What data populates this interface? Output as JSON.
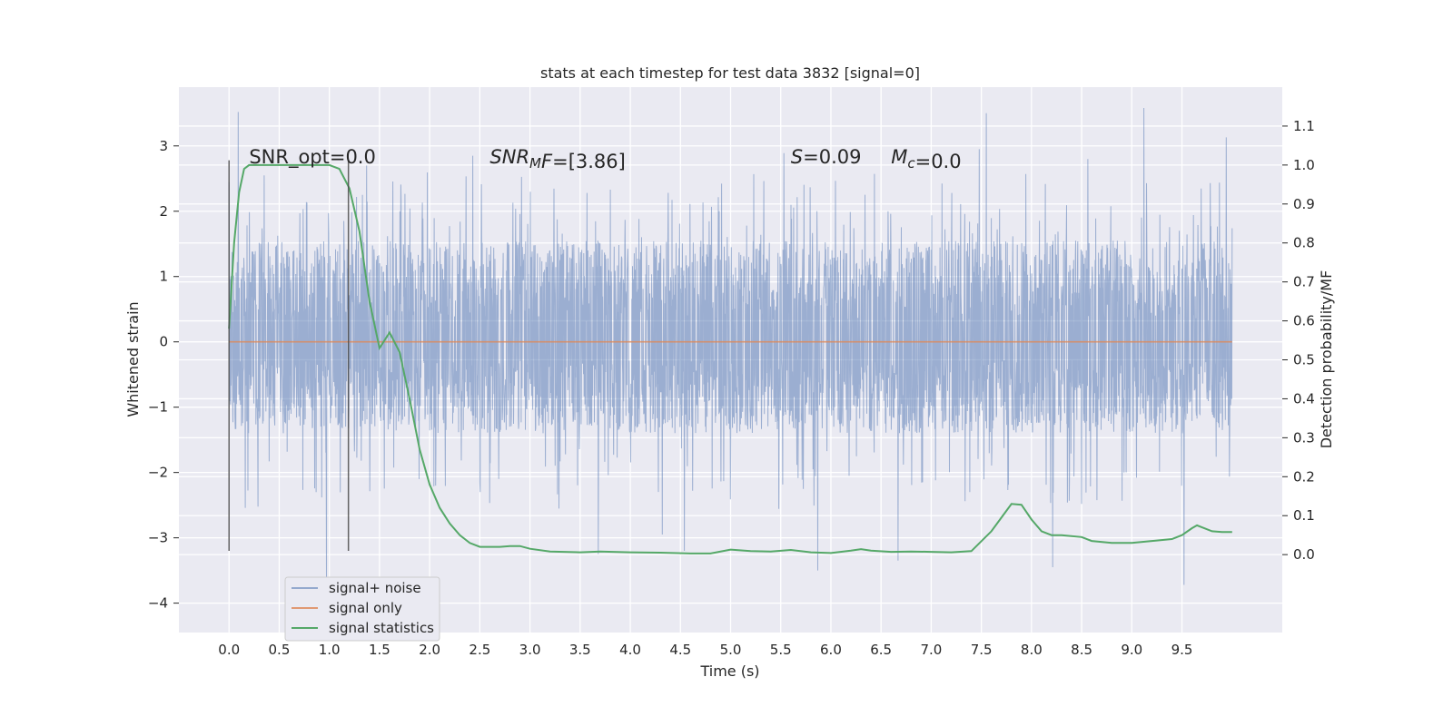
{
  "chart_data": {
    "type": "line",
    "title": "stats at each timestep for test data 3832 [signal=0]",
    "xlabel": "Time (s)",
    "ylabel": "Whitened strain",
    "ylabel_right": "Detection probability/MF",
    "xlim": [
      -0.5,
      10.5
    ],
    "ylim": [
      -4.45,
      3.9
    ],
    "ylim_right": [
      -0.2,
      1.2
    ],
    "x_ticks": [
      "0.0",
      "0.5",
      "1.0",
      "1.5",
      "2.0",
      "2.5",
      "3.0",
      "3.5",
      "4.0",
      "4.5",
      "5.0",
      "5.5",
      "6.0",
      "6.5",
      "7.0",
      "7.5",
      "8.0",
      "8.5",
      "9.0",
      "9.5"
    ],
    "y_ticks": [
      "3",
      "2",
      "1",
      "0",
      "−1",
      "−2",
      "−3",
      "−4"
    ],
    "y_right_ticks": [
      "1.1",
      "1.0",
      "0.9",
      "0.8",
      "0.7",
      "0.6",
      "0.5",
      "0.4",
      "0.3",
      "0.2",
      "0.1",
      "0.0"
    ],
    "grid": true,
    "legend_position": "lower-left",
    "annotations": [
      {
        "parts": [
          {
            "t": "SNR_opt=0.0",
            "i": false
          }
        ],
        "x": 0.2
      },
      {
        "parts": [
          {
            "t": "SNR",
            "i": true
          },
          {
            "t": "M",
            "i": true,
            "sub": true
          },
          {
            "t": "F",
            "i": true
          },
          {
            "t": "=[3.86]",
            "i": false
          }
        ],
        "x": 2.6
      },
      {
        "parts": [
          {
            "t": "S",
            "i": true
          },
          {
            "t": "=0.09",
            "i": false
          }
        ],
        "x": 5.6
      },
      {
        "parts": [
          {
            "t": "M",
            "i": true
          },
          {
            "t": "c",
            "i": true,
            "sub": true
          },
          {
            "t": "=0.0",
            "i": false
          }
        ],
        "x": 6.6
      }
    ],
    "vlines": [
      0.0,
      1.19
    ],
    "vline_ymin": -3.2,
    "vline_ymax": 2.78,
    "series": [
      {
        "name": "signal+ noise",
        "color": "#4c72b0",
        "x_range": [
          0.0,
          10.0
        ],
        "envelope_low": -1.4,
        "envelope_high": 1.55,
        "spike_extremes": [
          {
            "x": 0.09,
            "y": 3.52
          },
          {
            "x": 0.35,
            "y": 2.55
          },
          {
            "x": 0.97,
            "y": -3.62
          },
          {
            "x": 1.37,
            "y": 2.7
          },
          {
            "x": 2.06,
            "y": -2.2
          },
          {
            "x": 2.43,
            "y": 2.85
          },
          {
            "x": 3.68,
            "y": -3.25
          },
          {
            "x": 4.32,
            "y": -2.95
          },
          {
            "x": 4.54,
            "y": -3.2
          },
          {
            "x": 5.53,
            "y": 2.89
          },
          {
            "x": 5.87,
            "y": -3.5
          },
          {
            "x": 6.67,
            "y": -3.35
          },
          {
            "x": 7.48,
            "y": 2.95
          },
          {
            "x": 7.55,
            "y": 3.5
          },
          {
            "x": 8.21,
            "y": -3.45
          },
          {
            "x": 8.56,
            "y": 2.8
          },
          {
            "x": 9.12,
            "y": 3.58
          },
          {
            "x": 9.52,
            "y": -3.72
          },
          {
            "x": 9.94,
            "y": 3.13
          }
        ]
      },
      {
        "name": "signal only",
        "color": "#dd8452",
        "x": [
          0.0,
          10.0
        ],
        "y": [
          0.0,
          0.0
        ]
      },
      {
        "name": "signal statistics",
        "color": "#55a868",
        "axis": "right",
        "x": [
          0.0,
          0.05,
          0.1,
          0.15,
          0.2,
          0.3,
          0.5,
          0.7,
          0.9,
          1.0,
          1.1,
          1.2,
          1.3,
          1.4,
          1.5,
          1.6,
          1.7,
          1.8,
          1.9,
          2.0,
          2.1,
          2.2,
          2.3,
          2.4,
          2.5,
          2.6,
          2.7,
          2.8,
          2.9,
          3.0,
          3.2,
          3.5,
          3.7,
          4.0,
          4.3,
          4.6,
          4.8,
          5.0,
          5.2,
          5.4,
          5.6,
          5.8,
          6.0,
          6.2,
          6.3,
          6.4,
          6.6,
          6.8,
          7.0,
          7.2,
          7.4,
          7.6,
          7.7,
          7.8,
          7.9,
          8.0,
          8.1,
          8.2,
          8.3,
          8.5,
          8.6,
          8.8,
          9.0,
          9.2,
          9.4,
          9.5,
          9.6,
          9.65,
          9.7,
          9.8,
          9.9,
          10.0
        ],
        "y": [
          0.58,
          0.8,
          0.93,
          0.99,
          1.0,
          1.0,
          1.0,
          1.0,
          1.0,
          1.0,
          0.99,
          0.94,
          0.83,
          0.65,
          0.53,
          0.57,
          0.52,
          0.4,
          0.27,
          0.18,
          0.12,
          0.08,
          0.05,
          0.03,
          0.02,
          0.02,
          0.02,
          0.022,
          0.022,
          0.015,
          0.008,
          0.006,
          0.008,
          0.006,
          0.005,
          0.003,
          0.003,
          0.013,
          0.009,
          0.008,
          0.012,
          0.006,
          0.004,
          0.01,
          0.014,
          0.01,
          0.007,
          0.008,
          0.007,
          0.006,
          0.009,
          0.06,
          0.095,
          0.13,
          0.128,
          0.09,
          0.06,
          0.05,
          0.05,
          0.045,
          0.035,
          0.03,
          0.03,
          0.035,
          0.04,
          0.05,
          0.068,
          0.075,
          0.07,
          0.06,
          0.058,
          0.058
        ]
      }
    ]
  }
}
